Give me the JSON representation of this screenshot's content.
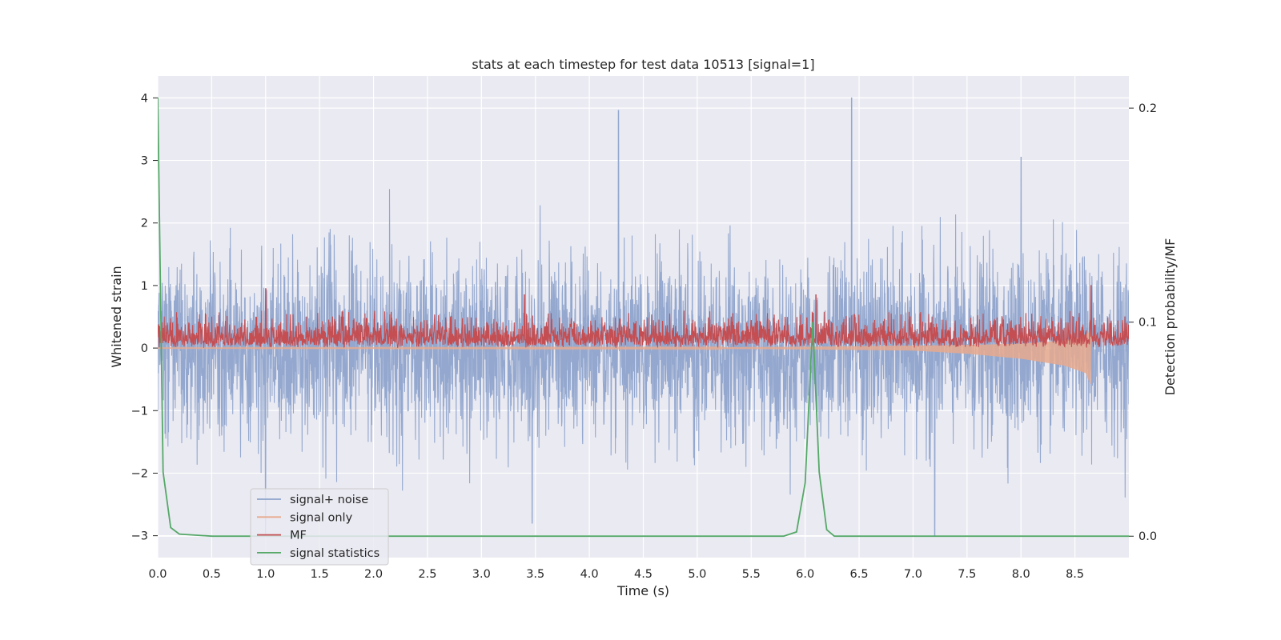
{
  "chart_data": {
    "type": "line",
    "title": "stats at each timestep for test data 10513 [signal=1]",
    "xlabel": "Time (s)",
    "ylabel": "Whitened strain",
    "ylabel_right": "Detection probability/MF",
    "xlim": [
      0.0,
      9.0
    ],
    "ylim": [
      -3.35,
      4.35
    ],
    "ylim_right": [
      -0.01,
      0.215
    ],
    "xticks": [
      "0.0",
      "0.5",
      "1.0",
      "1.5",
      "2.0",
      "2.5",
      "3.0",
      "3.5",
      "4.0",
      "4.5",
      "5.0",
      "5.5",
      "6.0",
      "6.5",
      "7.0",
      "7.5",
      "8.0",
      "8.5"
    ],
    "yticks": [
      "−3",
      "−2",
      "−1",
      "0",
      "1",
      "2",
      "3",
      "4"
    ],
    "yticks_right": [
      "0.0",
      "0.1",
      "0.2"
    ],
    "grid": true,
    "legend_position": "lower-left",
    "series": [
      {
        "name": "signal+ noise",
        "color": "#8fa4cc",
        "axis": "left",
        "description_values": {
          "approx_range": [
            -3.0,
            4.0
          ],
          "notable_peaks": [
            [
              4.27,
              3.8
            ],
            [
              6.43,
              4.0
            ],
            [
              8.0,
              3.05
            ],
            [
              1.0,
              -3.0
            ],
            [
              7.2,
              -3.0
            ],
            [
              3.47,
              -2.8
            ]
          ]
        }
      },
      {
        "name": "signal only",
        "color": "#e8a98d",
        "axis": "left",
        "envelope": {
          "t": [
            0.0,
            5.0,
            6.0,
            7.0,
            7.5,
            8.0,
            8.4,
            8.6,
            8.65
          ],
          "amp": [
            0.005,
            0.01,
            0.02,
            0.04,
            0.07,
            0.12,
            0.2,
            0.3,
            0.45
          ],
          "offset": [
            0.0,
            0.0,
            0.0,
            0.0,
            -0.02,
            -0.05,
            -0.08,
            -0.1,
            -0.15
          ]
        }
      },
      {
        "name": "MF",
        "color": "#c44e52",
        "axis": "left",
        "description_values": {
          "baseline": 0.0,
          "typical_max": 0.5,
          "peaks": [
            [
              1.0,
              0.95
            ],
            [
              8.65,
              1.0
            ],
            [
              6.1,
              0.85
            ],
            [
              3.4,
              0.85
            ]
          ]
        }
      },
      {
        "name": "signal statistics",
        "color": "#55a868",
        "axis": "right",
        "x": [
          0.0,
          0.05,
          0.12,
          0.2,
          0.5,
          1.0,
          2.0,
          3.0,
          4.0,
          5.0,
          5.8,
          5.92,
          6.0,
          6.07,
          6.13,
          6.2,
          6.27,
          7.0,
          8.0,
          9.0
        ],
        "values": [
          0.205,
          0.03,
          0.004,
          0.001,
          0.0,
          0.0,
          0.0,
          0.0,
          0.0,
          0.0,
          0.0,
          0.002,
          0.025,
          0.1,
          0.03,
          0.003,
          0.0,
          0.0,
          0.0,
          0.0
        ]
      }
    ]
  }
}
